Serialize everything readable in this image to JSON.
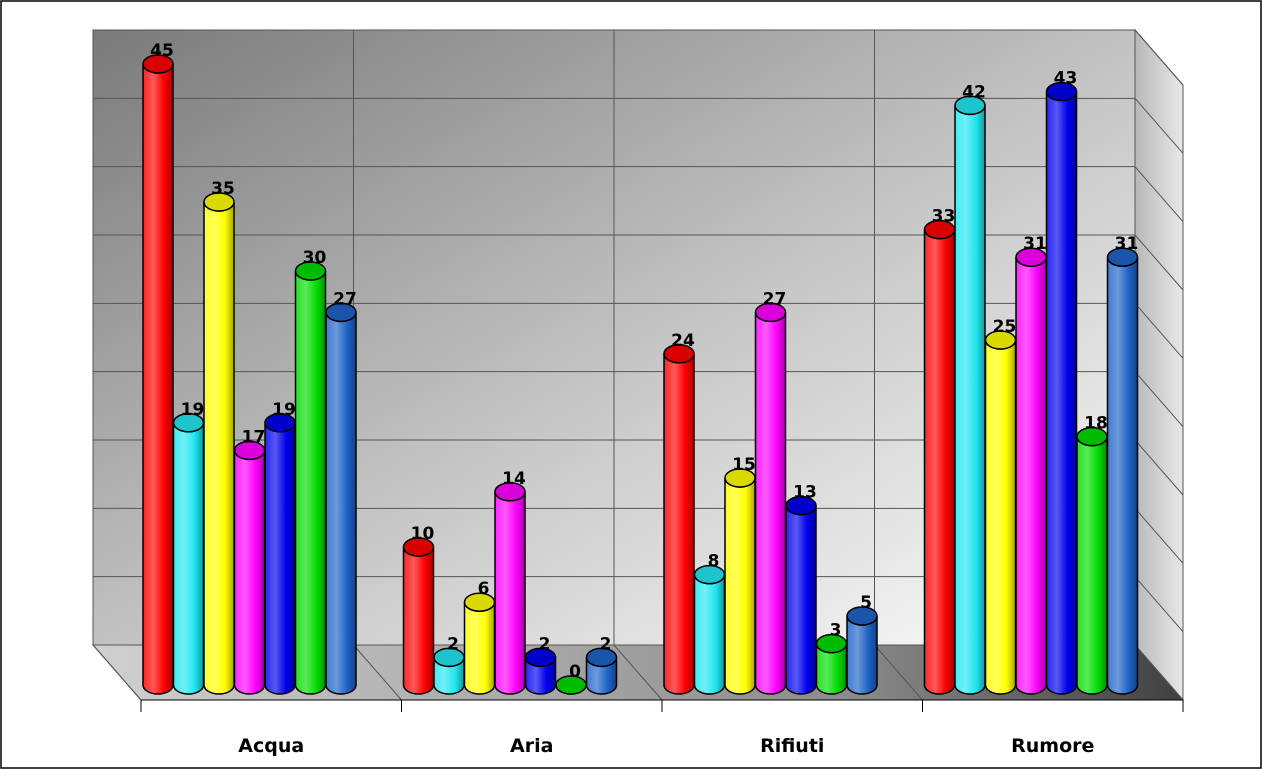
{
  "chart_data": {
    "type": "bar",
    "categories": [
      "Acqua",
      "Aria",
      "Rifiuti",
      "Rumore"
    ],
    "series": [
      {
        "values": [
          45,
          10,
          24,
          33
        ]
      },
      {
        "values": [
          19,
          2,
          8,
          42
        ]
      },
      {
        "values": [
          35,
          6,
          15,
          25
        ]
      },
      {
        "values": [
          17,
          14,
          27,
          31
        ]
      },
      {
        "values": [
          19,
          2,
          13,
          43
        ]
      },
      {
        "values": [
          30,
          0,
          3,
          18
        ]
      },
      {
        "values": [
          27,
          2,
          5,
          31
        ]
      }
    ],
    "series_colors": [
      "#ff0000",
      "#22e6f0",
      "#ffff00",
      "#ff00ff",
      "#0000ee",
      "#00dd00",
      "#1e64c8"
    ],
    "ylim": [
      0,
      45
    ],
    "grid": true,
    "legend": "none",
    "title": "",
    "xlabel": "",
    "ylabel": ""
  }
}
